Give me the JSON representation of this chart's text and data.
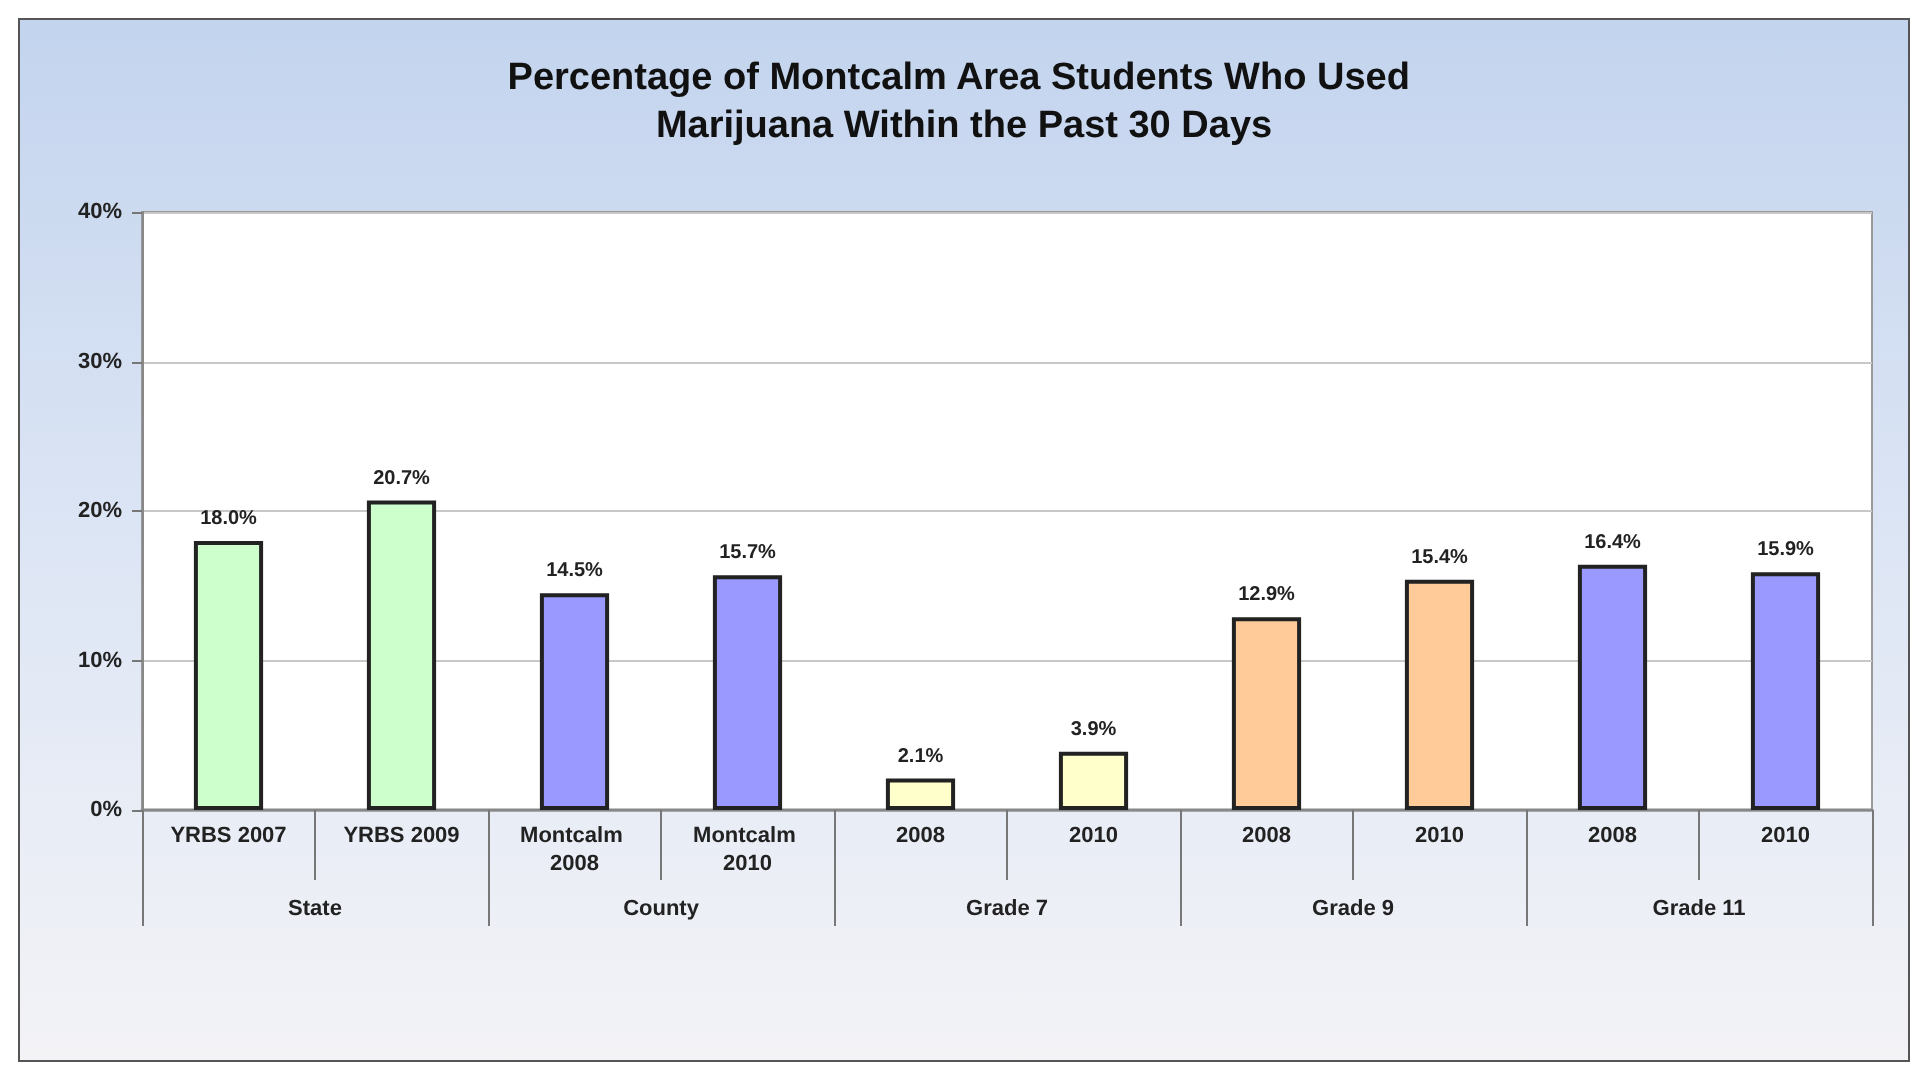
{
  "chart_data": {
    "type": "bar",
    "title": "Percentage of Montcalm Area Students Who Used Marijuana Within the Past 30 Days",
    "categories": [
      "YRBS 2007",
      "YRBS 2009",
      "Montcalm 2008",
      "Montcalm 2010",
      "2008",
      "2010",
      "2008",
      "2010",
      "2008",
      "2010"
    ],
    "values": [
      18.0,
      20.7,
      14.5,
      15.7,
      2.1,
      3.9,
      12.9,
      15.4,
      16.4,
      15.9
    ],
    "colors": [
      "#ccffcc",
      "#ccffcc",
      "#9999ff",
      "#9999ff",
      "#ffffcc",
      "#ffffcc",
      "#ffcc99",
      "#ffcc99",
      "#9999ff",
      "#9999ff"
    ],
    "value_labels": [
      "18.0%",
      "20.7%",
      "14.5%",
      "15.7%",
      "2.1%",
      "3.9%",
      "12.9%",
      "15.4%",
      "16.4%",
      "15.9%"
    ],
    "ylim": [
      0,
      40
    ],
    "yticks": [
      {
        "value": 0,
        "label": "0%"
      },
      {
        "value": 10,
        "label": "10%"
      },
      {
        "value": 20,
        "label": "20%"
      },
      {
        "value": 30,
        "label": "30%"
      },
      {
        "value": 40,
        "label": "40%"
      }
    ],
    "grid": "y",
    "annotations": [
      "State",
      "County",
      "Grade 7",
      "Grade 9",
      "Grade 11"
    ]
  }
}
